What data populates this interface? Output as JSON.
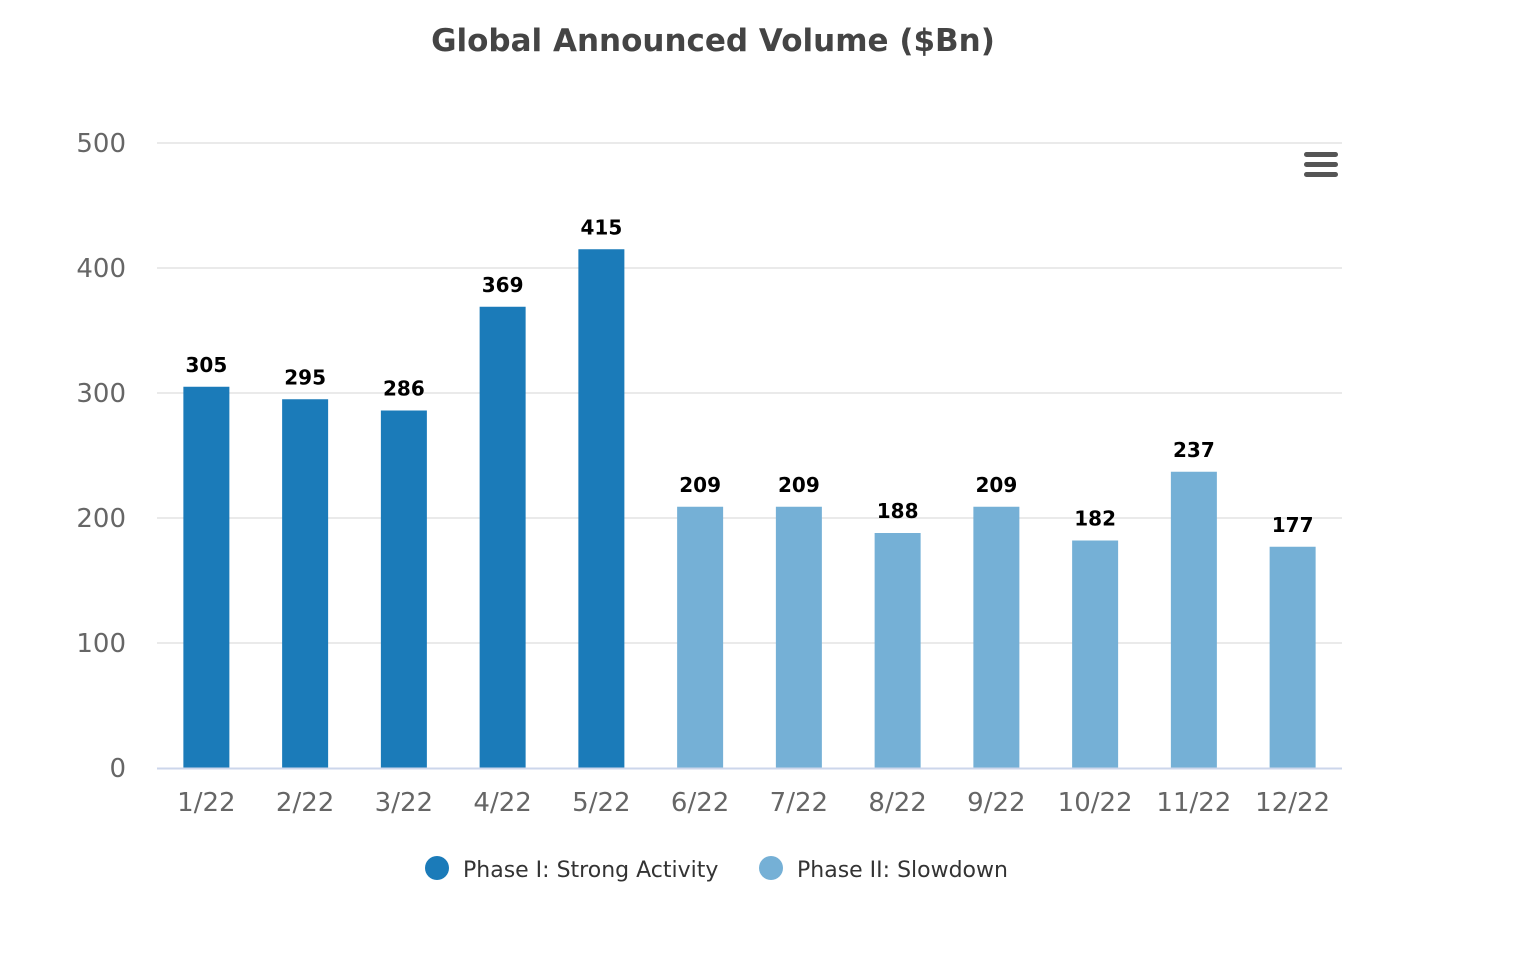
{
  "chart_data": {
    "type": "bar",
    "title": "Global Announced Volume ($Bn)",
    "xlabel": "",
    "ylabel": "",
    "ylim": [
      0,
      500
    ],
    "yticks": [
      0,
      100,
      200,
      300,
      400,
      500
    ],
    "grid": true,
    "legend_position": "bottom",
    "categories": [
      "1/22",
      "2/22",
      "3/22",
      "4/22",
      "5/22",
      "6/22",
      "7/22",
      "8/22",
      "9/22",
      "10/22",
      "11/22",
      "12/22"
    ],
    "values": [
      305,
      295,
      286,
      369,
      415,
      209,
      209,
      188,
      209,
      182,
      237,
      177
    ],
    "series": [
      {
        "name": "Phase I: Strong Activity",
        "color": "#1b7bb9",
        "categories": [
          "1/22",
          "2/22",
          "3/22",
          "4/22",
          "5/22"
        ]
      },
      {
        "name": "Phase II: Slowdown",
        "color": "#75b0d6",
        "categories": [
          "6/22",
          "7/22",
          "8/22",
          "9/22",
          "10/22",
          "11/22",
          "12/22"
        ]
      }
    ],
    "data_labels": [
      "305",
      "295",
      "286",
      "369",
      "415",
      "209",
      "209",
      "188",
      "209",
      "182",
      "237",
      "177"
    ]
  },
  "menu": {
    "icon": "hamburger-menu-icon"
  }
}
